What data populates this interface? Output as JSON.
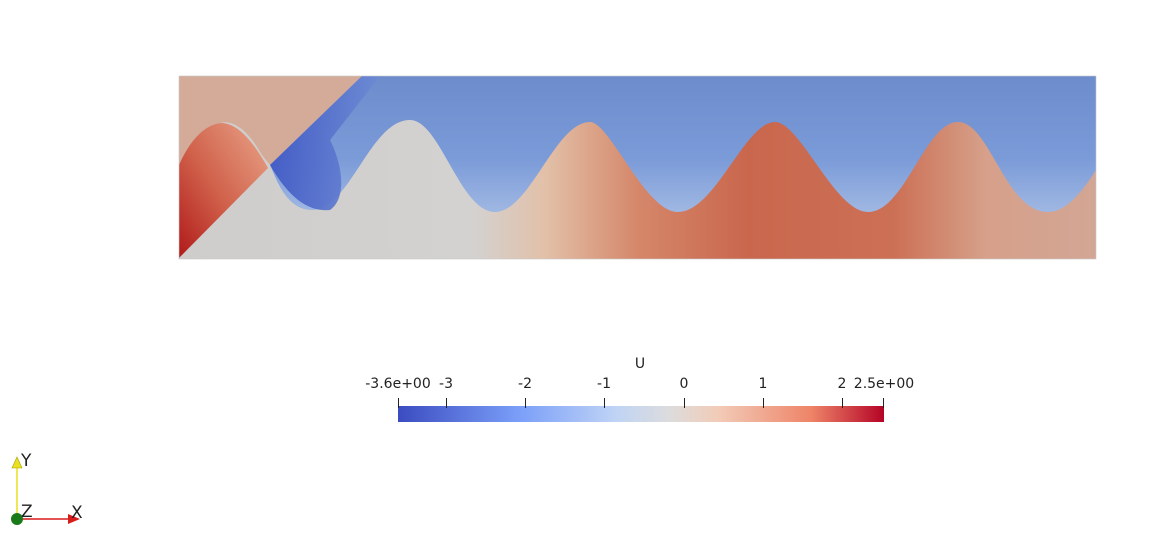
{
  "colorbar": {
    "title": "U",
    "range_min": -3.6,
    "range_max": 2.5,
    "ticks": [
      {
        "label": "-3.6e+00",
        "value": -3.6
      },
      {
        "label": "-3",
        "value": -3
      },
      {
        "label": "-2",
        "value": -2
      },
      {
        "label": "-1",
        "value": -1
      },
      {
        "label": "0",
        "value": 0
      },
      {
        "label": "1",
        "value": 1
      },
      {
        "label": "2",
        "value": 2
      },
      {
        "label": "2.5e+00",
        "value": 2.5
      }
    ],
    "colormap": [
      "#3b4cc0",
      "#7b9ff9",
      "#c0d4f5",
      "#dddcdc",
      "#f2cbb7",
      "#ee8468",
      "#b40426"
    ]
  },
  "orientation_axes": {
    "x_label": "X",
    "y_label": "Y",
    "z_label": "Z",
    "x_color": "#d81b1b",
    "y_color": "#e8e020",
    "z_color": "#1a7a1a"
  }
}
